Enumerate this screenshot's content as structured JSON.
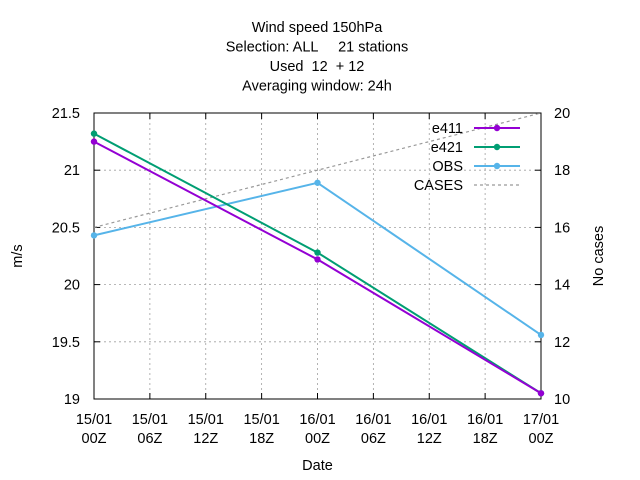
{
  "chart_data": {
    "type": "line",
    "title_lines": [
      "Wind speed 150hPa",
      "Selection: ALL     21 stations",
      "Used  12  + 12",
      "Averaging window: 24h"
    ],
    "xlabel": "Date",
    "ylabel": "m/s",
    "y2label": "No cases",
    "x_ticks": [
      [
        "15/01",
        "00Z"
      ],
      [
        "15/01",
        "06Z"
      ],
      [
        "15/01",
        "12Z"
      ],
      [
        "15/01",
        "18Z"
      ],
      [
        "16/01",
        "00Z"
      ],
      [
        "16/01",
        "06Z"
      ],
      [
        "16/01",
        "12Z"
      ],
      [
        "16/01",
        "18Z"
      ],
      [
        "17/01",
        "00Z"
      ]
    ],
    "x_hours": [
      0,
      24,
      48
    ],
    "xlim_hours": [
      0,
      48
    ],
    "ylim": [
      19,
      21.5
    ],
    "y_ticks": [
      "19",
      "19.5",
      "20",
      "20.5",
      "21",
      "21.5"
    ],
    "y2lim": [
      10,
      20
    ],
    "y2_ticks": [
      "10",
      "12",
      "14",
      "16",
      "18",
      "20"
    ],
    "grid": true,
    "legend_position": "top-right",
    "series": [
      {
        "name": "e411",
        "color": "#9400d3",
        "axis": "y",
        "marker": true,
        "dashed": false,
        "values": [
          21.25,
          20.22,
          19.05
        ]
      },
      {
        "name": "e421",
        "color": "#009e73",
        "axis": "y",
        "marker": true,
        "dashed": false,
        "values": [
          21.32,
          20.28,
          19.05
        ]
      },
      {
        "name": "OBS",
        "color": "#56b4e9",
        "axis": "y",
        "marker": true,
        "dashed": false,
        "values": [
          20.43,
          20.89,
          19.56
        ]
      },
      {
        "name": "CASES",
        "color": "#999999",
        "axis": "y2",
        "marker": false,
        "dashed": true,
        "values": [
          16,
          18,
          20
        ]
      }
    ]
  }
}
